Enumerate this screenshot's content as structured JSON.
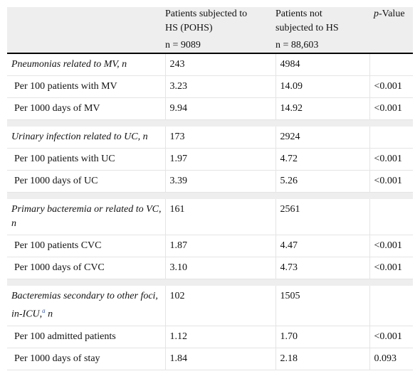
{
  "header": {
    "col2_line1": "Patients subjected to",
    "col2_line2": "HS (POHS)",
    "col2_n": "n = 9089",
    "col3_line1": "Patients not",
    "col3_line2": "subjected to HS",
    "col3_n": "n = 88,603",
    "col4_italic": "p",
    "col4_rest": "-Value"
  },
  "sections": [
    {
      "title": "Pneumonias related to MV, n",
      "title_suffix": "",
      "n_pohs": "243",
      "n_not": "4984",
      "rows": [
        {
          "label": "Per 100 patients with MV",
          "pohs": "3.23",
          "not": "14.09",
          "p": "<0.001"
        },
        {
          "label": "Per 1000 days of MV",
          "pohs": "9.94",
          "not": "14.92",
          "p": "<0.001"
        }
      ]
    },
    {
      "title": "Urinary infection related to UC, n",
      "title_suffix": "",
      "n_pohs": "173",
      "n_not": "2924",
      "rows": [
        {
          "label": "Per 100 patients with UC",
          "pohs": "1.97",
          "not": "4.72",
          "p": "<0.001"
        },
        {
          "label": "Per 1000 days of UC",
          "pohs": "3.39",
          "not": "5.26",
          "p": "<0.001"
        }
      ]
    },
    {
      "title": "Primary bacteremia or related to VC, n",
      "title_suffix": "",
      "n_pohs": "161",
      "n_not": "2561",
      "rows": [
        {
          "label": "Per 100 patients CVC",
          "pohs": "1.87",
          "not": "4.47",
          "p": "<0.001"
        },
        {
          "label": "Per 1000 days of CVC",
          "pohs": "3.10",
          "not": "4.73",
          "p": "<0.001"
        }
      ]
    },
    {
      "title": "Bacteremias secondary to other foci, in-ICU,",
      "footnote": "a",
      "title_suffix": " n",
      "n_pohs": "102",
      "n_not": "1505",
      "rows": [
        {
          "label": "Per 100 admitted patients",
          "pohs": "1.12",
          "not": "1.70",
          "p": "<0.001"
        },
        {
          "label": "Per 1000 days of stay",
          "pohs": "1.84",
          "not": "2.18",
          "p": "0.093"
        }
      ]
    }
  ]
}
